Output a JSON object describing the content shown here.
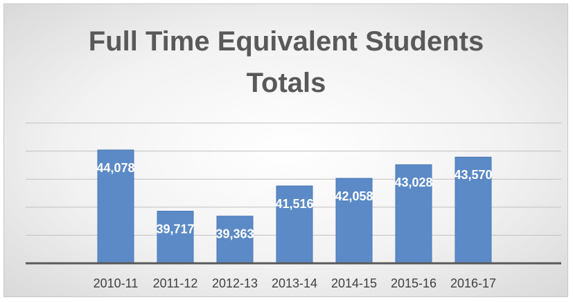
{
  "chart_data": {
    "type": "bar",
    "title": "Full Time Equivalent Students Totals",
    "categories": [
      "2010-11",
      "2011-12",
      "2012-13",
      "2013-14",
      "2014-15",
      "2015-16",
      "2016-17"
    ],
    "values": [
      44078,
      39717,
      39363,
      41516,
      42058,
      43028,
      43570
    ],
    "value_labels": [
      "44,078",
      "39,717",
      "39,363",
      "41,516",
      "42,058",
      "43,028",
      "43,570"
    ],
    "color": "#5b8ac6",
    "ylim": [
      36000,
      46000
    ],
    "yticks": [
      36000,
      38000,
      40000,
      42000,
      44000,
      46000
    ],
    "grid": true
  }
}
